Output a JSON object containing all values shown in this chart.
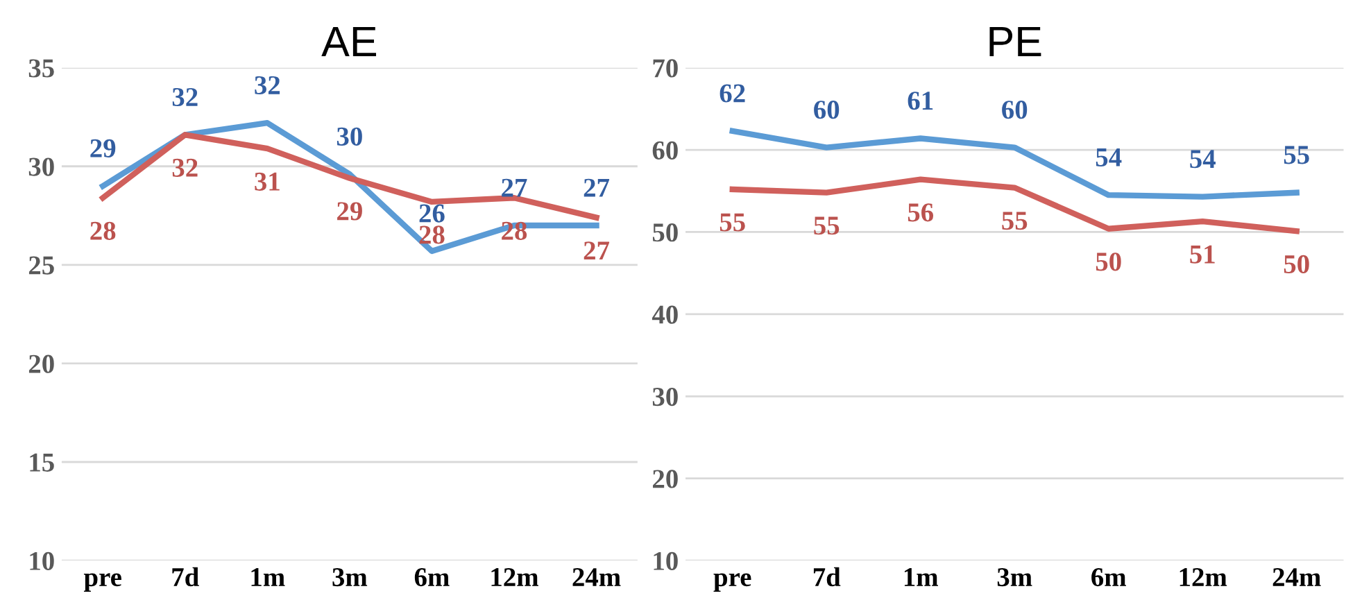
{
  "chart_data": [
    {
      "type": "line",
      "title": "AE",
      "categories": [
        "pre",
        "7d",
        "1m",
        "3m",
        "6m",
        "12m",
        "24m"
      ],
      "ylim": [
        10,
        35
      ],
      "yticks": [
        10,
        15,
        20,
        25,
        30,
        35
      ],
      "grid": "y",
      "legend": false,
      "series": [
        {
          "color": "#5b9bd5",
          "values": [
            29.0,
            31.6,
            32.2,
            29.6,
            25.7,
            27.0,
            27.0
          ],
          "value_labels": [
            "29",
            "32",
            "32",
            "30",
            "26",
            "27",
            "27"
          ]
        },
        {
          "color": "#d0605c",
          "values": [
            28.4,
            31.6,
            30.9,
            29.4,
            28.2,
            28.4,
            27.4
          ],
          "value_labels": [
            "28",
            "32",
            "31",
            "29",
            "28",
            "28",
            "27"
          ]
        }
      ]
    },
    {
      "type": "line",
      "title": "PE",
      "categories": [
        "pre",
        "7d",
        "1m",
        "3m",
        "6m",
        "12m",
        "24m"
      ],
      "ylim": [
        10,
        70
      ],
      "yticks": [
        10,
        20,
        30,
        40,
        50,
        60,
        70
      ],
      "grid": "y",
      "legend": false,
      "series": [
        {
          "color": "#5b9bd5",
          "values": [
            62.3,
            60.3,
            61.4,
            60.3,
            54.5,
            54.3,
            54.8
          ],
          "value_labels": [
            "62",
            "60",
            "61",
            "60",
            "54",
            "54",
            "55"
          ]
        },
        {
          "color": "#d0605c",
          "values": [
            55.2,
            54.8,
            56.4,
            55.4,
            50.4,
            51.3,
            50.1
          ],
          "value_labels": [
            "55",
            "55",
            "56",
            "55",
            "50",
            "51",
            "50"
          ]
        }
      ]
    }
  ]
}
